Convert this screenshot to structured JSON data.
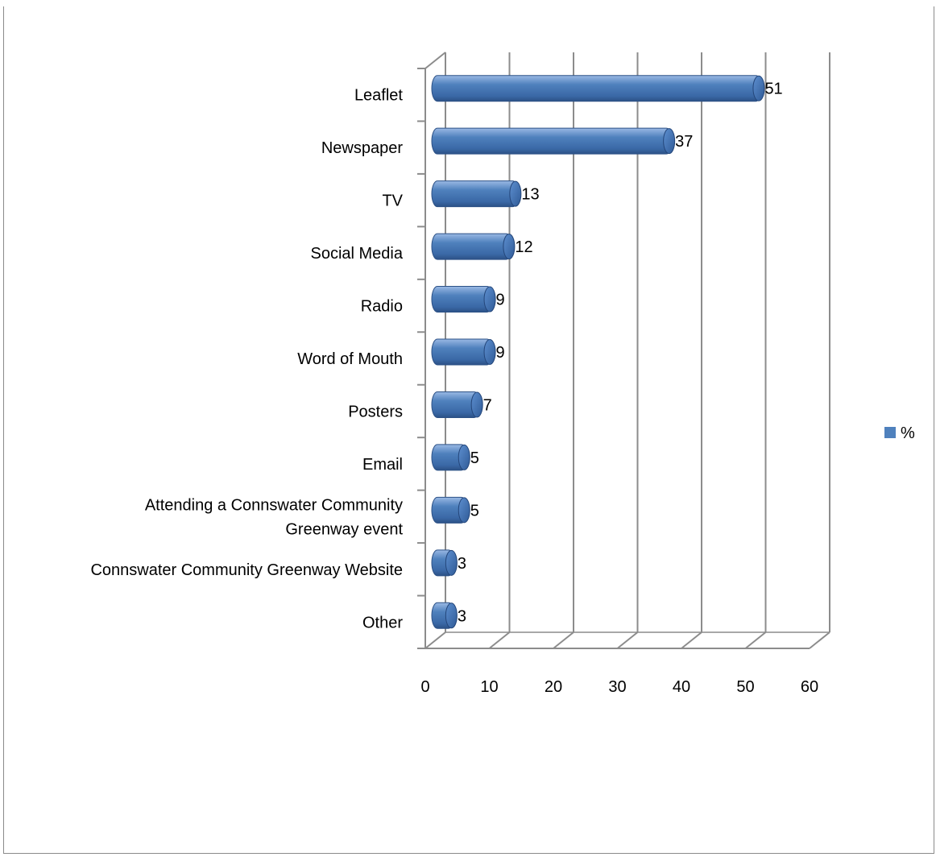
{
  "chart_data": {
    "type": "bar",
    "orientation": "horizontal",
    "style": "3d-cylinder",
    "categories": [
      "Leaflet",
      "Newspaper",
      "TV",
      "Social Media",
      "Radio",
      "Word of Mouth",
      "Posters",
      "Email",
      "Attending a Connswater Community Greenway event",
      "Connswater Community Greenway Website",
      "Other"
    ],
    "category_lines": [
      [
        "Leaflet"
      ],
      [
        "Newspaper"
      ],
      [
        "TV"
      ],
      [
        "Social Media"
      ],
      [
        "Radio"
      ],
      [
        "Word of Mouth"
      ],
      [
        "Posters"
      ],
      [
        "Email"
      ],
      [
        "Attending a Connswater Community",
        "Greenway event"
      ],
      [
        "Connswater Community Greenway Website"
      ],
      [
        "Other"
      ]
    ],
    "series": [
      {
        "name": "%",
        "values": [
          51,
          37,
          13,
          12,
          9,
          9,
          7,
          5,
          5,
          3,
          3
        ],
        "color": "#4f81bd"
      }
    ],
    "xlim": [
      0,
      60
    ],
    "x_ticks": [
      "0",
      "10",
      "20",
      "30",
      "40",
      "50",
      "60"
    ],
    "grid": true,
    "legend_position": "right",
    "data_labels": true,
    "title": "",
    "xlabel": "",
    "ylabel": ""
  }
}
